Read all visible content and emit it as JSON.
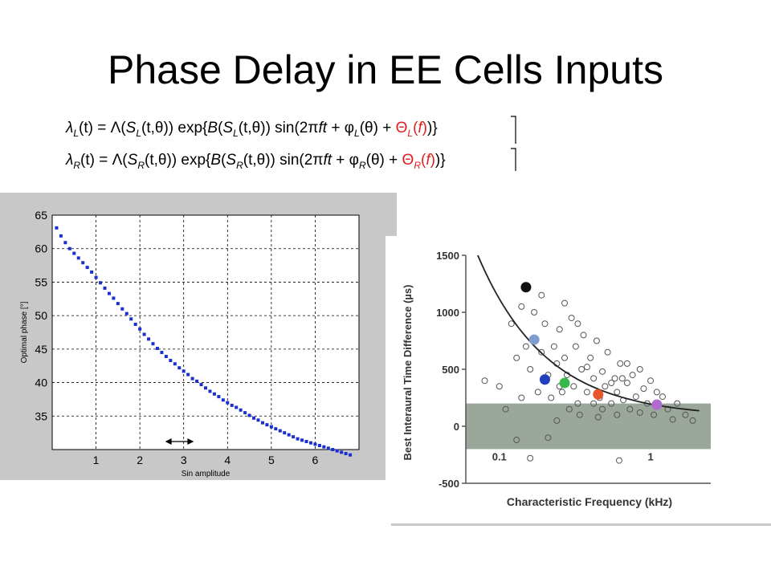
{
  "slide": {
    "title": "Phase Delay in EE Cells Inputs"
  },
  "equations": [
    {
      "lhs_sym": "λ",
      "lhs_sub": "L",
      "s_sub": "L",
      "phi_sub": "L",
      "theta_sub": "L",
      "text_rhs": "(t) = Λ(S(t,θ)) exp{B(S(t,θ)) sin(2πft + φ(θ) + Θ(f))}"
    },
    {
      "lhs_sym": "λ",
      "lhs_sub": "R",
      "s_sub": "R",
      "phi_sub": "R",
      "theta_sub": "R",
      "text_rhs": "(t) = Λ(S(t,θ)) exp{B(S(t,θ)) sin(2πft + φ(θ) + Θ(f))}"
    }
  ],
  "chart_data": [
    {
      "type": "scatter",
      "xlabel": "Sin amplitude",
      "ylabel": "Optimal phase [°]",
      "xlim": [
        0,
        7
      ],
      "ylim": [
        30,
        65
      ],
      "xticks": [
        1,
        2,
        3,
        4,
        5,
        6
      ],
      "yticks": [
        35,
        40,
        45,
        50,
        55,
        60,
        65
      ],
      "grid": true,
      "marker_color": "#1a2fd0",
      "x": [
        0.1,
        0.2,
        0.3,
        0.4,
        0.5,
        0.6,
        0.7,
        0.8,
        0.9,
        1.0,
        1.1,
        1.2,
        1.3,
        1.4,
        1.5,
        1.6,
        1.7,
        1.8,
        1.9,
        2.0,
        2.1,
        2.2,
        2.3,
        2.4,
        2.5,
        2.6,
        2.7,
        2.8,
        2.9,
        3.0,
        3.1,
        3.2,
        3.3,
        3.4,
        3.5,
        3.6,
        3.7,
        3.8,
        3.9,
        4.0,
        4.1,
        4.2,
        4.3,
        4.4,
        4.5,
        4.6,
        4.7,
        4.8,
        4.9,
        5.0,
        5.1,
        5.2,
        5.3,
        5.4,
        5.5,
        5.6,
        5.7,
        5.8,
        5.9,
        6.0,
        6.1,
        6.2,
        6.3,
        6.4,
        6.5,
        6.6,
        6.7,
        6.8
      ],
      "y": [
        63.1,
        61.9,
        60.9,
        60.0,
        59.3,
        58.6,
        57.9,
        57.2,
        56.5,
        55.7,
        54.9,
        54.1,
        53.3,
        52.6,
        51.8,
        51.0,
        50.3,
        49.5,
        48.7,
        48.0,
        47.2,
        46.5,
        45.8,
        45.1,
        44.5,
        43.9,
        43.3,
        42.8,
        42.2,
        41.7,
        41.2,
        40.6,
        40.2,
        39.7,
        39.2,
        38.7,
        38.3,
        37.9,
        37.4,
        37.0,
        36.6,
        36.3,
        35.9,
        35.5,
        35.1,
        34.7,
        34.4,
        34.0,
        33.7,
        33.4,
        33.1,
        32.8,
        32.5,
        32.2,
        31.9,
        31.6,
        31.4,
        31.2,
        31.0,
        30.8,
        30.6,
        30.4,
        30.2,
        30.0,
        29.8,
        29.6,
        29.4,
        29.2
      ],
      "annotation": "double-headed arrow between x≈2.6 and x≈3.2 near the x-axis"
    },
    {
      "type": "scatter",
      "xlabel": "Characteristic Frequency (kHz)",
      "ylabel": "Best Interaural Time Difference (µs)",
      "xscale": "log",
      "xlim": [
        0.06,
        2.5
      ],
      "ylim": [
        -500,
        1500
      ],
      "yticks": [
        -500,
        0,
        500,
        1000,
        1500
      ],
      "xticks": [
        0.1,
        1
      ],
      "xtick_labels": [
        "0.1",
        "1"
      ],
      "shaded_band": {
        "y": [
          -200,
          200
        ],
        "color": "#9aa79a"
      },
      "fit_curve": "decreasing curve from about 1500 µs near 0.07 kHz to about 80 µs near 2 kHz",
      "highlighted_points": [
        {
          "x": 0.15,
          "y": 1220,
          "color": "#111111"
        },
        {
          "x": 0.17,
          "y": 760,
          "color": "#7f9ccf"
        },
        {
          "x": 0.2,
          "y": 410,
          "color": "#1f3fc0"
        },
        {
          "x": 0.27,
          "y": 380,
          "color": "#38b84a"
        },
        {
          "x": 0.45,
          "y": 280,
          "color": "#e8552a"
        },
        {
          "x": 1.1,
          "y": 190,
          "color": "#b06ad0"
        }
      ],
      "open_circles": [
        {
          "x": 0.08,
          "y": 400
        },
        {
          "x": 0.1,
          "y": 350
        },
        {
          "x": 0.12,
          "y": 900
        },
        {
          "x": 0.13,
          "y": 600
        },
        {
          "x": 0.14,
          "y": 250
        },
        {
          "x": 0.15,
          "y": 700
        },
        {
          "x": 0.16,
          "y": 500
        },
        {
          "x": 0.17,
          "y": 1000
        },
        {
          "x": 0.18,
          "y": 300
        },
        {
          "x": 0.19,
          "y": 650
        },
        {
          "x": 0.2,
          "y": 900
        },
        {
          "x": 0.21,
          "y": 450
        },
        {
          "x": 0.22,
          "y": 250
        },
        {
          "x": 0.23,
          "y": 700
        },
        {
          "x": 0.24,
          "y": 550
        },
        {
          "x": 0.25,
          "y": 850
        },
        {
          "x": 0.26,
          "y": 300
        },
        {
          "x": 0.27,
          "y": 600
        },
        {
          "x": 0.28,
          "y": 450
        },
        {
          "x": 0.3,
          "y": 950
        },
        {
          "x": 0.31,
          "y": 350
        },
        {
          "x": 0.32,
          "y": 700
        },
        {
          "x": 0.33,
          "y": 200
        },
        {
          "x": 0.35,
          "y": 500
        },
        {
          "x": 0.36,
          "y": 800
        },
        {
          "x": 0.38,
          "y": 300
        },
        {
          "x": 0.4,
          "y": 600
        },
        {
          "x": 0.42,
          "y": 420
        },
        {
          "x": 0.44,
          "y": 750
        },
        {
          "x": 0.46,
          "y": 250
        },
        {
          "x": 0.48,
          "y": 480
        },
        {
          "x": 0.5,
          "y": 350
        },
        {
          "x": 0.52,
          "y": 650
        },
        {
          "x": 0.55,
          "y": 200
        },
        {
          "x": 0.58,
          "y": 420
        },
        {
          "x": 0.6,
          "y": 300
        },
        {
          "x": 0.63,
          "y": 550
        },
        {
          "x": 0.66,
          "y": 230
        },
        {
          "x": 0.7,
          "y": 380
        },
        {
          "x": 0.73,
          "y": 150
        },
        {
          "x": 0.76,
          "y": 450
        },
        {
          "x": 0.8,
          "y": 260
        },
        {
          "x": 0.85,
          "y": 120
        },
        {
          "x": 0.9,
          "y": 330
        },
        {
          "x": 0.95,
          "y": 200
        },
        {
          "x": 1.0,
          "y": 400
        },
        {
          "x": 1.05,
          "y": 100
        },
        {
          "x": 1.2,
          "y": 260
        },
        {
          "x": 1.3,
          "y": 150
        },
        {
          "x": 1.4,
          "y": 60
        },
        {
          "x": 1.5,
          "y": 200
        },
        {
          "x": 1.7,
          "y": 100
        },
        {
          "x": 1.9,
          "y": 50
        },
        {
          "x": 0.34,
          "y": 100
        },
        {
          "x": 0.29,
          "y": 150
        },
        {
          "x": 0.24,
          "y": 50
        },
        {
          "x": 0.21,
          "y": -100
        },
        {
          "x": 0.45,
          "y": 80
        },
        {
          "x": 0.6,
          "y": 100
        },
        {
          "x": 0.16,
          "y": -280
        },
        {
          "x": 0.13,
          "y": -120
        },
        {
          "x": 0.11,
          "y": 150
        },
        {
          "x": 0.62,
          "y": -300
        },
        {
          "x": 0.55,
          "y": 380
        },
        {
          "x": 0.38,
          "y": 520
        },
        {
          "x": 0.27,
          "y": 1080
        },
        {
          "x": 0.14,
          "y": 1050
        },
        {
          "x": 0.19,
          "y": 1150
        },
        {
          "x": 0.33,
          "y": 900
        },
        {
          "x": 0.25,
          "y": 350
        },
        {
          "x": 0.42,
          "y": 200
        },
        {
          "x": 0.7,
          "y": 550
        },
        {
          "x": 0.85,
          "y": 500
        },
        {
          "x": 1.1,
          "y": 300
        },
        {
          "x": 0.48,
          "y": 150
        },
        {
          "x": 0.65,
          "y": 420
        }
      ]
    }
  ]
}
